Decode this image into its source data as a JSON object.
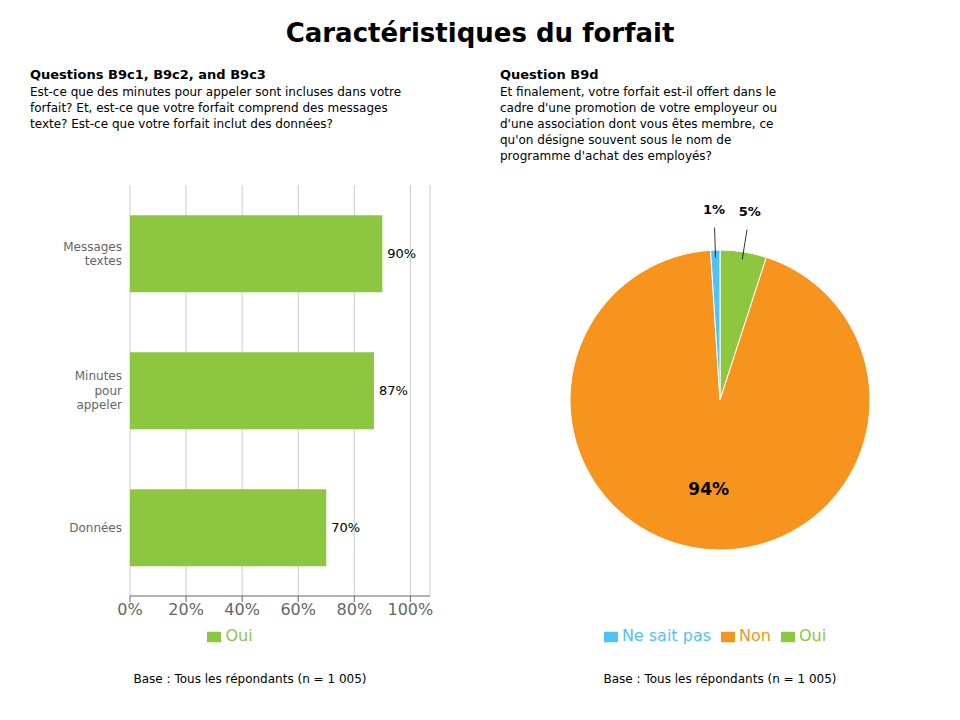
{
  "title": "Caractéristiques du forfait",
  "chart_data": [
    {
      "type": "bar",
      "orientation": "horizontal",
      "title": "Questions B9c1, B9c2, and B9c3",
      "subtitle": [
        "Est-ce que des minutes pour appeler sont incluses dans votre",
        "forfait? Et, est-ce que votre forfait comprend des messages",
        "texte? Est-ce que votre forfait inclut des données?"
      ],
      "categories": [
        "Messages\ntextes",
        "Minutes\npour\nappeler",
        "Données"
      ],
      "series": [
        {
          "name": "Oui",
          "color": "#8DC63F",
          "values": [
            90,
            87,
            70
          ],
          "value_labels": [
            "90%",
            "87%",
            "70%"
          ]
        }
      ],
      "data_labels": true,
      "xlim": [
        0,
        107
      ],
      "xticks": [
        {
          "value": 0,
          "label": "0%"
        },
        {
          "value": 20,
          "label": "20%"
        },
        {
          "value": 40,
          "label": "40%"
        },
        {
          "value": 60,
          "label": "60%"
        },
        {
          "value": 80,
          "label": "80%"
        },
        {
          "value": 100,
          "label": "100%"
        }
      ],
      "grid": true,
      "legend": "bottom",
      "note": "Base : Tous les répondants (n = 1 005)"
    },
    {
      "type": "pie",
      "title": "Question B9d",
      "subtitle": [
        "Et finalement, votre forfait est-il offert dans le",
        "cadre d'une promotion de votre employeur ou",
        "d'une association dont vous êtes membre, ce",
        "qu'on désigne souvent sous le nom de",
        "programme d'achat des employés?"
      ],
      "categories": [
        "Oui",
        "Non",
        "Ne sait pas"
      ],
      "values": [
        5,
        94,
        1
      ],
      "value_labels": [
        "5%",
        "94%",
        "1%"
      ],
      "colors": [
        "#8DC63F",
        "#F7941D",
        "#4FC3F7"
      ],
      "data_labels": true,
      "legend": "bottom",
      "note": "Base : Tous les répondants (n = 1 005)"
    }
  ]
}
